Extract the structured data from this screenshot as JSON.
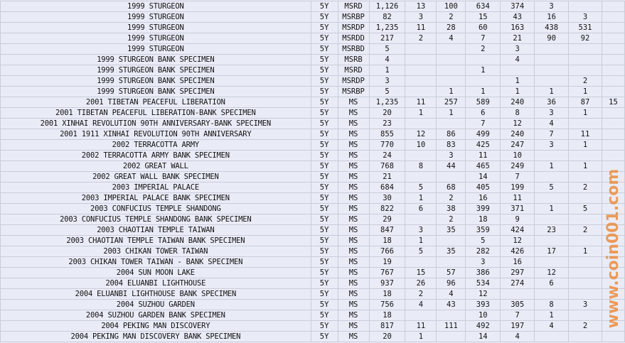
{
  "rows": [
    [
      "1999 STURGEON",
      "5Y",
      "MSRD",
      "1,126",
      "13",
      "100",
      "634",
      "374",
      "3",
      "",
      ""
    ],
    [
      "1999 STURGEON",
      "5Y",
      "MSRBP",
      "82",
      "3",
      "2",
      "15",
      "43",
      "16",
      "3",
      ""
    ],
    [
      "1999 STURGEON",
      "5Y",
      "MSRDP",
      "1,235",
      "11",
      "28",
      "60",
      "163",
      "438",
      "531",
      ""
    ],
    [
      "1999 STURGEON",
      "5Y",
      "MSRDD",
      "217",
      "2",
      "4",
      "7",
      "21",
      "90",
      "92",
      ""
    ],
    [
      "1999 STURGEON",
      "5Y",
      "MSRBD",
      "5",
      "",
      "",
      "2",
      "3",
      "",
      "",
      ""
    ],
    [
      "1999 STURGEON BANK SPECIMEN",
      "5Y",
      "MSRB",
      "4",
      "",
      "",
      "",
      "4",
      "",
      "",
      ""
    ],
    [
      "1999 STURGEON BANK SPECIMEN",
      "5Y",
      "MSRD",
      "1",
      "",
      "",
      "1",
      "",
      "",
      "",
      ""
    ],
    [
      "1999 STURGEON BANK SPECIMEN",
      "5Y",
      "MSRDP",
      "3",
      "",
      "",
      "",
      "1",
      "",
      "2",
      ""
    ],
    [
      "1999 STURGEON BANK SPECIMEN",
      "5Y",
      "MSRBP",
      "5",
      "",
      "1",
      "1",
      "1",
      "1",
      "1",
      ""
    ],
    [
      "2001 TIBETAN PEACEFUL LIBERATION",
      "5Y",
      "MS",
      "1,235",
      "11",
      "257",
      "589",
      "240",
      "36",
      "87",
      "15"
    ],
    [
      "2001 TIBETAN PEACEFUL LIBERATION-BANK SPECIMEN",
      "5Y",
      "MS",
      "20",
      "1",
      "1",
      "6",
      "8",
      "3",
      "1",
      ""
    ],
    [
      "2001 XINHAI REVOLUTION 90TH ANNIVERSARY-BANK SPECIMEN",
      "5Y",
      "MS",
      "23",
      "",
      "",
      "7",
      "12",
      "4",
      "",
      ""
    ],
    [
      "2001 1911 XINHAI REVOLUTION 90TH ANNIVERSARY",
      "5Y",
      "MS",
      "855",
      "12",
      "86",
      "499",
      "240",
      "7",
      "11",
      ""
    ],
    [
      "2002 TERRACOTTA ARMY",
      "5Y",
      "MS",
      "770",
      "10",
      "83",
      "425",
      "247",
      "3",
      "1",
      ""
    ],
    [
      "2002 TERRACOTTA ARMY BANK SPECIMEN",
      "5Y",
      "MS",
      "24",
      "",
      "3",
      "11",
      "10",
      "",
      "",
      ""
    ],
    [
      "2002 GREAT WALL",
      "5Y",
      "MS",
      "768",
      "8",
      "44",
      "465",
      "249",
      "1",
      "1",
      ""
    ],
    [
      "2002 GREAT WALL BANK SPECIMEN",
      "5Y",
      "MS",
      "21",
      "",
      "",
      "14",
      "7",
      "",
      "",
      ""
    ],
    [
      "2003 IMPERIAL PALACE",
      "5Y",
      "MS",
      "684",
      "5",
      "68",
      "405",
      "199",
      "5",
      "2",
      ""
    ],
    [
      "2003 IMPERIAL PALACE BANK SPECIMEN",
      "5Y",
      "MS",
      "30",
      "1",
      "2",
      "16",
      "11",
      "",
      "",
      ""
    ],
    [
      "2003 CONFUCIUS TEMPLE SHANDONG",
      "5Y",
      "MS",
      "822",
      "6",
      "38",
      "399",
      "371",
      "1",
      "5",
      ""
    ],
    [
      "2003 CONFUCIUS TEMPLE SHANDONG BANK SPECIMEN",
      "5Y",
      "MS",
      "29",
      "",
      "2",
      "18",
      "9",
      "",
      "",
      ""
    ],
    [
      "2003 CHAOTIAN TEMPLE TAIWAN",
      "5Y",
      "MS",
      "847",
      "3",
      "35",
      "359",
      "424",
      "23",
      "2",
      ""
    ],
    [
      "2003 CHAOTIAN TEMPLE TAIWAN BANK SPECIMEN",
      "5Y",
      "MS",
      "18",
      "1",
      "",
      "5",
      "12",
      "",
      "",
      ""
    ],
    [
      "2003 CHIKAN TOWER TAIWAN",
      "5Y",
      "MS",
      "766",
      "5",
      "35",
      "282",
      "426",
      "17",
      "1",
      ""
    ],
    [
      "2003 CHIKAN TOWER TAIWAN - BANK SPECIMEN",
      "5Y",
      "MS",
      "19",
      "",
      "",
      "3",
      "16",
      "",
      "",
      ""
    ],
    [
      "2004 SUN MOON LAKE",
      "5Y",
      "MS",
      "767",
      "15",
      "57",
      "386",
      "297",
      "12",
      "",
      ""
    ],
    [
      "2004 ELUANBI LIGHTHOUSE",
      "5Y",
      "MS",
      "937",
      "26",
      "96",
      "534",
      "274",
      "6",
      "",
      ""
    ],
    [
      "2004 ELUANBI LIGHTHOUSE BANK SPECIMEN",
      "5Y",
      "MS",
      "18",
      "2",
      "4",
      "12",
      "",
      "",
      "",
      ""
    ],
    [
      "2004 SUZHOU GARDEN",
      "5Y",
      "MS",
      "756",
      "4",
      "43",
      "393",
      "305",
      "8",
      "3",
      ""
    ],
    [
      "2004 SUZHOU GARDEN BANK SPECIMEN",
      "5Y",
      "MS",
      "18",
      "",
      "",
      "10",
      "7",
      "1",
      "",
      ""
    ],
    [
      "2004 PEKING MAN DISCOVERY",
      "5Y",
      "MS",
      "817",
      "11",
      "111",
      "492",
      "197",
      "4",
      "2",
      ""
    ],
    [
      "2004 PEKING MAN DISCOVERY BANK SPECIMEN",
      "5Y",
      "MS",
      "20",
      "1",
      "",
      "14",
      "4",
      "",
      "",
      ""
    ]
  ],
  "watermark": "www.coin001.com",
  "colors": {
    "background": "#e9ecf7",
    "grid": "#c9cdd9",
    "watermark": "#eb8c3c"
  }
}
